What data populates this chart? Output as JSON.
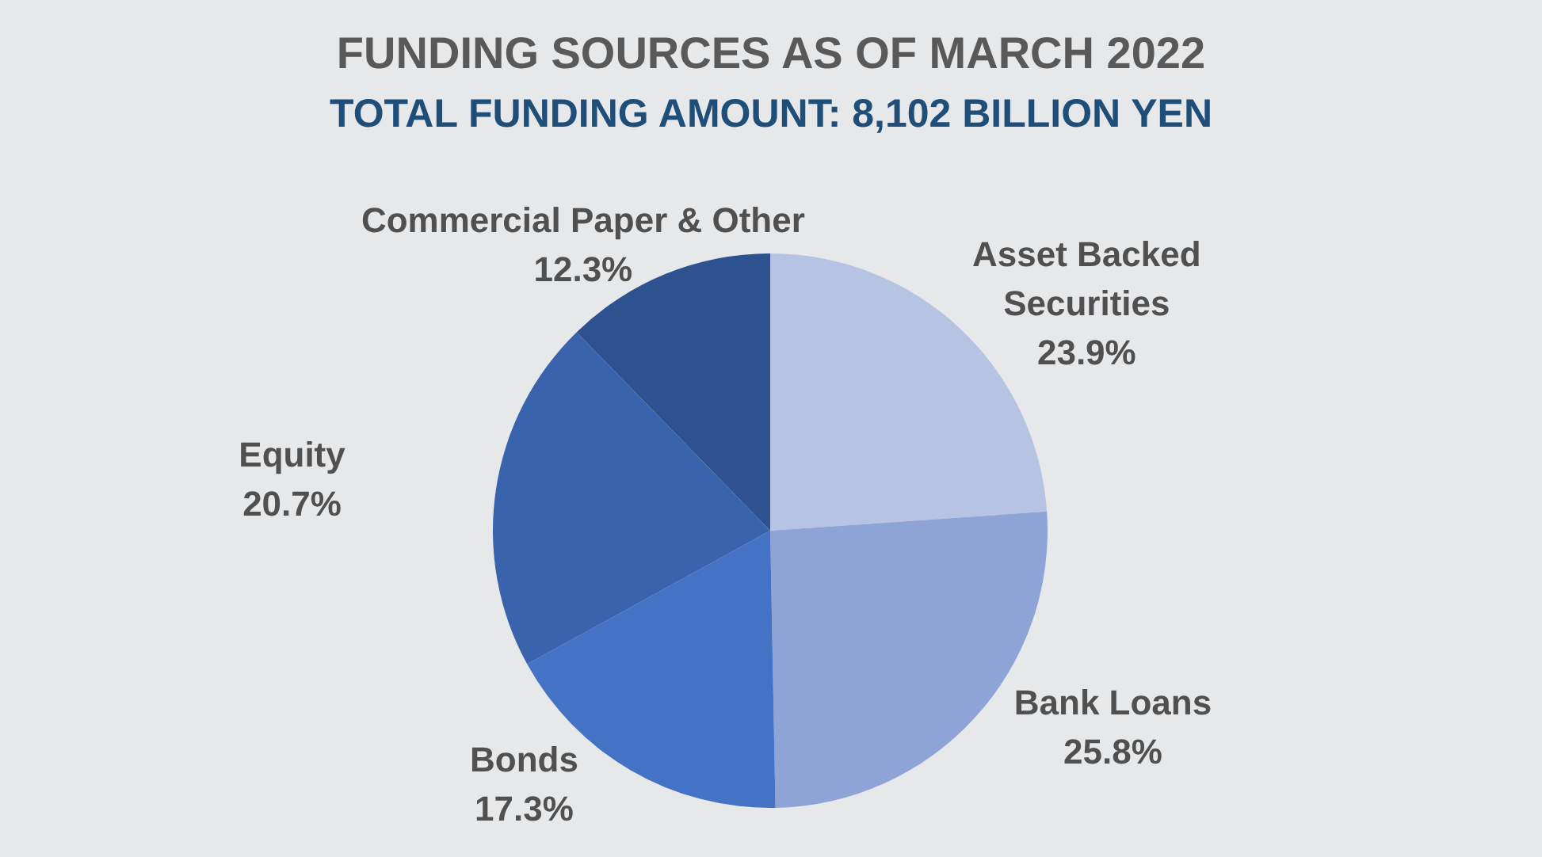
{
  "chart_data": {
    "type": "pie",
    "title": "FUNDING SOURCES AS OF MARCH 2022",
    "subtitle": "TOTAL FUNDING AMOUNT: 8,102 BILLION YEN",
    "categories": [
      "Asset Backed Securities",
      "Bank Loans",
      "Bonds",
      "Equity",
      "Commercial Paper & Other"
    ],
    "values": [
      23.9,
      25.8,
      17.3,
      20.7,
      12.3
    ],
    "value_labels": [
      "23.9%",
      "25.8%",
      "17.3%",
      "20.7%",
      "12.3%"
    ],
    "colors": [
      "#b7c3e3",
      "#8ea4d6",
      "#4472c4",
      "#3a63ad",
      "#2e5190"
    ]
  }
}
